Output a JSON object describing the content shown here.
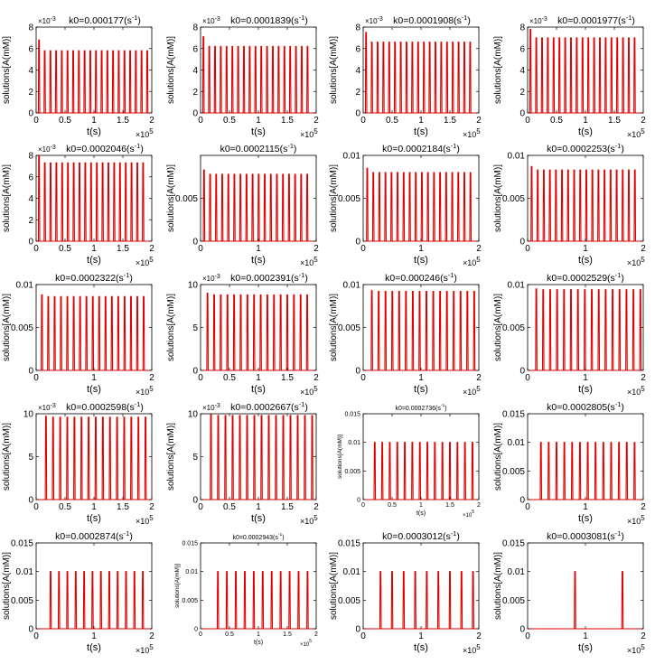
{
  "common": {
    "xlabel": "t(s)",
    "ylabel": "solutions[A(mM)]",
    "x_exponent_label": "×10",
    "x_exponent_power": "5",
    "unit_prefix": "(s",
    "unit_power": "-1",
    "unit_suffix": ")",
    "line_color": "#e00000"
  },
  "chart_data": [
    {
      "type": "line",
      "title": "k0=0.000177",
      "y_exp_label": "×10",
      "y_exp_power": "-3",
      "xlim": [
        0,
        2
      ],
      "x_scale": 100000,
      "xticks": [
        "0",
        "0.5",
        "1",
        "1.5",
        "2"
      ],
      "xtick_values": [
        0,
        0.5,
        1,
        1.5,
        2
      ],
      "ylim": [
        0,
        8
      ],
      "yticks": [
        "0",
        "2",
        "4",
        "6",
        "8"
      ],
      "ytick_values": [
        0,
        2,
        4,
        6,
        8
      ],
      "y_scale": 0.001,
      "peaks": {
        "count": 20,
        "first_t": 0.05,
        "period": 0.0985,
        "first_height": 6.8,
        "height": 5.8
      }
    },
    {
      "type": "line",
      "title": "k0=0.0001839",
      "y_exp_label": "×10",
      "y_exp_power": "-3",
      "xlim": [
        0,
        2
      ],
      "x_scale": 100000,
      "xticks": [
        "0",
        "0.5",
        "1",
        "1.5",
        "2"
      ],
      "xtick_values": [
        0,
        0.5,
        1,
        1.5,
        2
      ],
      "ylim": [
        0,
        8
      ],
      "yticks": [
        "0",
        "2",
        "4",
        "6",
        "8"
      ],
      "ytick_values": [
        0,
        2,
        4,
        6,
        8
      ],
      "y_scale": 0.001,
      "peaks": {
        "count": 19,
        "first_t": 0.05,
        "period": 0.1,
        "first_height": 7.1,
        "height": 6.2
      }
    },
    {
      "type": "line",
      "title": "k0=0.0001908",
      "y_exp_label": "×10",
      "y_exp_power": "-3",
      "xlim": [
        0,
        2
      ],
      "x_scale": 100000,
      "xticks": [
        "0",
        "0.5",
        "1",
        "1.5",
        "2"
      ],
      "xtick_values": [
        0,
        0.5,
        1,
        1.5,
        2
      ],
      "ylim": [
        0,
        8
      ],
      "yticks": [
        "0",
        "2",
        "4",
        "6",
        "8"
      ],
      "ytick_values": [
        0,
        2,
        4,
        6,
        8
      ],
      "y_scale": 0.001,
      "peaks": {
        "count": 19,
        "first_t": 0.05,
        "period": 0.1,
        "first_height": 7.5,
        "height": 6.6
      }
    },
    {
      "type": "line",
      "title": "k0=0.0001977",
      "y_exp_label": "×10",
      "y_exp_power": "-3",
      "xlim": [
        0,
        2
      ],
      "x_scale": 100000,
      "xticks": [
        "0",
        "0.5",
        "1",
        "1.5",
        "2"
      ],
      "xtick_values": [
        0,
        0.5,
        1,
        1.5,
        2
      ],
      "ylim": [
        0,
        8
      ],
      "yticks": [
        "0",
        "2",
        "4",
        "6",
        "8"
      ],
      "ytick_values": [
        0,
        2,
        4,
        6,
        8
      ],
      "y_scale": 0.001,
      "peaks": {
        "count": 19,
        "first_t": 0.05,
        "period": 0.1,
        "first_height": 7.8,
        "height": 7.0
      }
    },
    {
      "type": "line",
      "title": "k0=0.0002046",
      "y_exp_label": "×10",
      "y_exp_power": "-3",
      "xlim": [
        0,
        2
      ],
      "x_scale": 100000,
      "xticks": [
        "0",
        "0.5",
        "1",
        "1.5",
        "2"
      ],
      "xtick_values": [
        0,
        0.5,
        1,
        1.5,
        2
      ],
      "ylim": [
        0,
        8
      ],
      "yticks": [
        "0",
        "2",
        "4",
        "6",
        "8"
      ],
      "ytick_values": [
        0,
        2,
        4,
        6,
        8
      ],
      "y_scale": 0.001,
      "peaks": {
        "count": 19,
        "first_t": 0.05,
        "period": 0.1,
        "first_height": 8.0,
        "height": 7.3
      }
    },
    {
      "type": "line",
      "title": "k0=0.0002115",
      "y_exp_label": "",
      "y_exp_power": "",
      "xlim": [
        0,
        2
      ],
      "x_scale": 100000,
      "xticks": [
        "0",
        "1",
        "2"
      ],
      "xtick_values": [
        0,
        1,
        2
      ],
      "ylim": [
        0,
        0.01
      ],
      "yticks": [
        "0",
        "0.005"
      ],
      "ytick_values": [
        0,
        0.005
      ],
      "y_scale": 1,
      "peaks": {
        "count": 18,
        "first_t": 0.06,
        "period": 0.105,
        "first_height": 0.0083,
        "height": 0.0078
      }
    },
    {
      "type": "line",
      "title": "k0=0.0002184",
      "y_exp_label": "",
      "y_exp_power": "",
      "xlim": [
        0,
        2
      ],
      "x_scale": 100000,
      "xticks": [
        "0",
        "1",
        "2"
      ],
      "xtick_values": [
        0,
        1,
        2
      ],
      "ylim": [
        0,
        0.01
      ],
      "yticks": [
        "0",
        "0.005",
        "0.01"
      ],
      "ytick_values": [
        0,
        0.005,
        0.01
      ],
      "y_scale": 1,
      "peaks": {
        "count": 18,
        "first_t": 0.07,
        "period": 0.105,
        "first_height": 0.0085,
        "height": 0.008
      }
    },
    {
      "type": "line",
      "title": "k0=0.0002253",
      "y_exp_label": "",
      "y_exp_power": "",
      "xlim": [
        0,
        2
      ],
      "x_scale": 100000,
      "xticks": [
        "0",
        "1",
        "2"
      ],
      "xtick_values": [
        0,
        1,
        2
      ],
      "ylim": [
        0,
        0.01
      ],
      "yticks": [
        "0",
        "0.005",
        "0.01"
      ],
      "ytick_values": [
        0,
        0.005,
        0.01
      ],
      "y_scale": 1,
      "peaks": {
        "count": 18,
        "first_t": 0.07,
        "period": 0.105,
        "first_height": 0.0087,
        "height": 0.0083
      }
    },
    {
      "type": "line",
      "title": "k0=0.0002322",
      "y_exp_label": "",
      "y_exp_power": "",
      "xlim": [
        0,
        2
      ],
      "x_scale": 100000,
      "xticks": [
        "0",
        "1",
        "2"
      ],
      "xtick_values": [
        0,
        1,
        2
      ],
      "ylim": [
        0,
        0.01
      ],
      "yticks": [
        "0",
        "0.005",
        "0.01"
      ],
      "ytick_values": [
        0,
        0.005,
        0.01
      ],
      "y_scale": 1,
      "peaks": {
        "count": 17,
        "first_t": 0.1,
        "period": 0.11,
        "first_height": 0.0088,
        "height": 0.0086
      }
    },
    {
      "type": "line",
      "title": "k0=0.0002391",
      "y_exp_label": "×10",
      "y_exp_power": "-3",
      "xlim": [
        0,
        2
      ],
      "x_scale": 100000,
      "xticks": [
        "0",
        "0.5",
        "1",
        "1.5",
        "2"
      ],
      "xtick_values": [
        0,
        0.5,
        1,
        1.5,
        2
      ],
      "ylim": [
        0,
        10
      ],
      "yticks": [
        "0",
        "5",
        "10"
      ],
      "ytick_values": [
        0,
        5,
        10
      ],
      "y_scale": 0.001,
      "peaks": {
        "count": 16,
        "first_t": 0.12,
        "period": 0.115,
        "first_height": 9.0,
        "height": 8.8
      }
    },
    {
      "type": "line",
      "title": "k0=0.000246",
      "y_exp_label": "",
      "y_exp_power": "",
      "xlim": [
        0,
        2
      ],
      "x_scale": 100000,
      "xticks": [
        "0",
        "1",
        "2"
      ],
      "xtick_values": [
        0,
        1,
        2
      ],
      "ylim": [
        0,
        0.01
      ],
      "yticks": [
        "0",
        "0.005",
        "0.01"
      ],
      "ytick_values": [
        0,
        0.005,
        0.01
      ],
      "y_scale": 1,
      "peaks": {
        "count": 16,
        "first_t": 0.15,
        "period": 0.118,
        "first_height": 0.0093,
        "height": 0.0092
      }
    },
    {
      "type": "line",
      "title": "k0=0.0002529",
      "y_exp_label": "",
      "y_exp_power": "",
      "xlim": [
        0,
        2
      ],
      "x_scale": 100000,
      "xticks": [
        "0",
        "1",
        "2"
      ],
      "xtick_values": [
        0,
        1,
        2
      ],
      "ylim": [
        0,
        0.01
      ],
      "yticks": [
        "0",
        "0.005",
        "0.01"
      ],
      "ytick_values": [
        0,
        0.005,
        0.01
      ],
      "y_scale": 1,
      "peaks": {
        "count": 16,
        "first_t": 0.15,
        "period": 0.12,
        "first_height": 0.0095,
        "height": 0.0094
      }
    },
    {
      "type": "line",
      "title": "k0=0.0002598",
      "y_exp_label": "×10",
      "y_exp_power": "-3",
      "xlim": [
        0,
        2
      ],
      "x_scale": 100000,
      "xticks": [
        "0",
        "0.5",
        "1",
        "1.5",
        "2"
      ],
      "xtick_values": [
        0,
        0.5,
        1,
        1.5,
        2
      ],
      "ylim": [
        0,
        10
      ],
      "yticks": [
        "0",
        "5",
        "10"
      ],
      "ytick_values": [
        0,
        5,
        10
      ],
      "y_scale": 0.001,
      "peaks": {
        "count": 15,
        "first_t": 0.17,
        "period": 0.123,
        "first_height": 9.7,
        "height": 9.6
      }
    },
    {
      "type": "line",
      "title": "k0=0.0002667",
      "y_exp_label": "×10",
      "y_exp_power": "-3",
      "xlim": [
        0,
        2
      ],
      "x_scale": 100000,
      "xticks": [
        "0",
        "0.5",
        "1",
        "1.5",
        "2"
      ],
      "xtick_values": [
        0,
        0.5,
        1,
        1.5,
        2
      ],
      "ylim": [
        0,
        10
      ],
      "yticks": [
        "0",
        "5",
        "10"
      ],
      "ytick_values": [
        0,
        5,
        10
      ],
      "y_scale": 0.001,
      "peaks": {
        "count": 15,
        "first_t": 0.18,
        "period": 0.125,
        "first_height": 9.9,
        "height": 9.8
      }
    },
    {
      "type": "line",
      "title": "k0=0.0002736",
      "small": true,
      "y_exp_label": "",
      "y_exp_power": "",
      "xlim": [
        0,
        2
      ],
      "x_scale": 100000,
      "xticks": [
        "0",
        "0.5",
        "1",
        "1.5",
        "2"
      ],
      "xtick_values": [
        0,
        0.5,
        1,
        1.5,
        2
      ],
      "ylim": [
        0,
        0.015
      ],
      "yticks": [
        "0",
        "0.005",
        "0.01",
        "0.015"
      ],
      "ytick_values": [
        0,
        0.005,
        0.01,
        0.015
      ],
      "y_scale": 1,
      "peaks": {
        "count": 14,
        "first_t": 0.2,
        "period": 0.13,
        "first_height": 0.01,
        "height": 0.01
      }
    },
    {
      "type": "line",
      "title": "k0=0.0002805",
      "y_exp_label": "",
      "y_exp_power": "",
      "xlim": [
        0,
        2
      ],
      "x_scale": 100000,
      "xticks": [
        "0",
        "1",
        "2"
      ],
      "xtick_values": [
        0,
        1,
        2
      ],
      "ylim": [
        0,
        0.015
      ],
      "yticks": [
        "0",
        "0.005",
        "0.01",
        "0.015"
      ],
      "ytick_values": [
        0,
        0.005,
        0.01,
        0.015
      ],
      "y_scale": 1,
      "peaks": {
        "count": 13,
        "first_t": 0.23,
        "period": 0.135,
        "first_height": 0.01,
        "height": 0.01
      }
    },
    {
      "type": "line",
      "title": "k0=0.0002874",
      "y_exp_label": "",
      "y_exp_power": "",
      "xlim": [
        0,
        2
      ],
      "x_scale": 100000,
      "xticks": [
        "0",
        "1",
        "2"
      ],
      "xtick_values": [
        0,
        1,
        2
      ],
      "ylim": [
        0,
        0.015
      ],
      "yticks": [
        "0",
        "0.005",
        "0.01",
        "0.015"
      ],
      "ytick_values": [
        0,
        0.005,
        0.01,
        0.015
      ],
      "y_scale": 1,
      "peaks": {
        "count": 12,
        "first_t": 0.25,
        "period": 0.145,
        "first_height": 0.01,
        "height": 0.01
      }
    },
    {
      "type": "line",
      "title": "k0=0.0002943",
      "small": true,
      "y_exp_label": "",
      "y_exp_power": "",
      "xlim": [
        0,
        2
      ],
      "x_scale": 100000,
      "xticks": [
        "0",
        "0.5",
        "1",
        "1.5",
        "2"
      ],
      "xtick_values": [
        0,
        0.5,
        1,
        1.5,
        2
      ],
      "ylim": [
        0,
        0.015
      ],
      "yticks": [
        "0",
        "0.005",
        "0.01",
        "0.015"
      ],
      "ytick_values": [
        0,
        0.005,
        0.01,
        0.015
      ],
      "y_scale": 1,
      "peaks": {
        "count": 11,
        "first_t": 0.3,
        "period": 0.155,
        "first_height": 0.01,
        "height": 0.01
      }
    },
    {
      "type": "line",
      "title": "k0=0.0003012",
      "y_exp_label": "",
      "y_exp_power": "",
      "xlim": [
        0,
        2
      ],
      "x_scale": 100000,
      "xticks": [
        "0",
        "1",
        "2"
      ],
      "xtick_values": [
        0,
        1,
        2
      ],
      "ylim": [
        0,
        0.015
      ],
      "yticks": [
        "0",
        "0.005",
        "0.01",
        "0.015"
      ],
      "ytick_values": [
        0,
        0.005,
        0.01,
        0.015
      ],
      "y_scale": 1,
      "peaks": {
        "count": 9,
        "first_t": 0.3,
        "period": 0.2,
        "first_height": 0.01,
        "height": 0.01
      }
    },
    {
      "type": "line",
      "title": "k0=0.0003081",
      "y_exp_label": "",
      "y_exp_power": "",
      "xlim": [
        0,
        2
      ],
      "x_scale": 100000,
      "xticks": [
        "0",
        "1",
        "2"
      ],
      "xtick_values": [
        0,
        1,
        2
      ],
      "ylim": [
        0,
        0.015
      ],
      "yticks": [
        "0",
        "0.005",
        "0.01",
        "0.015"
      ],
      "ytick_values": [
        0,
        0.005,
        0.01,
        0.015
      ],
      "y_scale": 1,
      "peaks": {
        "count": 2,
        "first_t": 0.82,
        "period": 0.82,
        "first_height": 0.01,
        "height": 0.01
      }
    }
  ]
}
